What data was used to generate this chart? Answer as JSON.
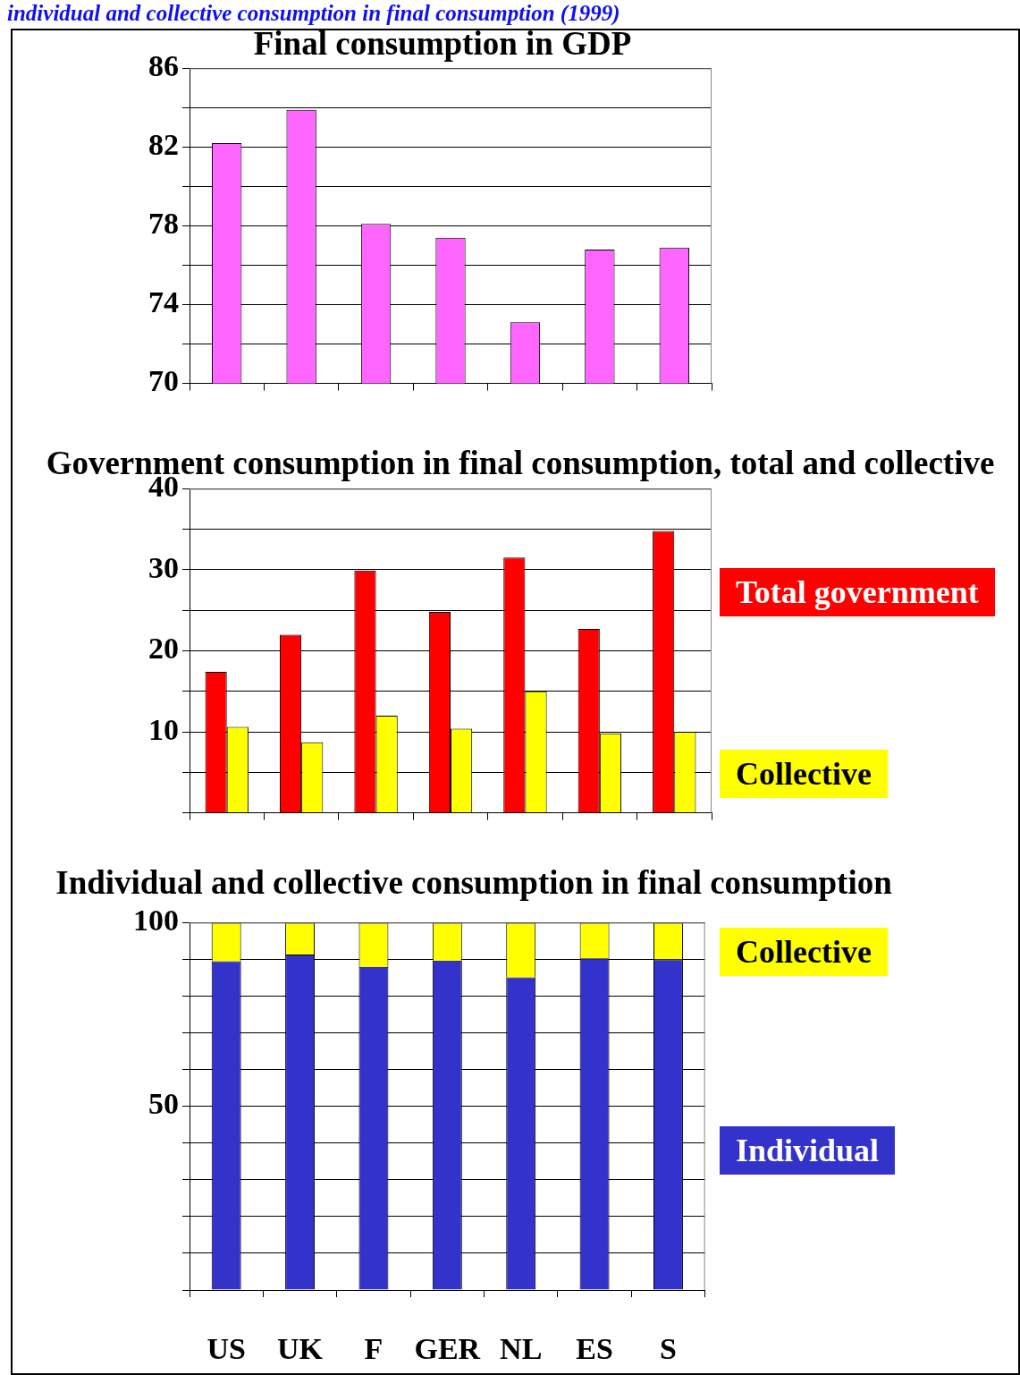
{
  "chart_data": [
    {
      "type": "bar",
      "title": "Final consumption in GDP",
      "annotations": [
        "individual and collective consumption in final consumption (1999)"
      ],
      "categories": [
        null,
        null,
        null,
        null,
        null,
        null,
        null
      ],
      "values": [
        82.2,
        83.9,
        78.1,
        77.4,
        73.1,
        76.8,
        76.9
      ],
      "color": "#ff66ff",
      "ylim": [
        70,
        86
      ],
      "yticks": [
        70,
        {
          "value": 72,
          "label": null
        },
        74,
        {
          "value": 76,
          "label": null
        },
        78,
        {
          "value": 80,
          "label": null
        },
        82,
        {
          "value": 84,
          "label": null
        },
        86
      ],
      "grid": "y",
      "tick_labels": "y"
    },
    {
      "type": "bar",
      "title": "Government consumption in final consumption, total and collective",
      "categories": [
        null,
        null,
        null,
        null,
        null,
        null,
        null
      ],
      "series": [
        {
          "name": "Total government",
          "color": "#ff0000",
          "values": [
            17.4,
            22.0,
            29.9,
            24.8,
            31.5,
            22.7,
            34.8
          ]
        },
        {
          "name": "Collective",
          "color": "#ffff00",
          "values": [
            10.6,
            8.7,
            12.0,
            10.4,
            15.0,
            9.8,
            10.0
          ]
        }
      ],
      "ylim": [
        0,
        40
      ],
      "yticks": [
        {
          "value": 0,
          "label": null
        },
        {
          "value": 5,
          "label": null
        },
        10,
        {
          "value": 15,
          "label": null
        },
        20,
        {
          "value": 25,
          "label": null
        },
        30,
        {
          "value": 35,
          "label": null
        },
        40
      ],
      "grid": "y",
      "tick_labels": "y",
      "legend": "right"
    },
    {
      "type": "bar",
      "title": "Individual and collective consumption in final consumption",
      "stacked": true,
      "categories": [
        "US",
        "UK",
        "F",
        "GER",
        "NL",
        "ES",
        "S"
      ],
      "series": [
        {
          "name": "Individual",
          "color": "#3333cc",
          "values": [
            89.5,
            91.3,
            88.0,
            89.7,
            85.1,
            90.3,
            90.0
          ]
        },
        {
          "name": "Collective",
          "color": "#ffff00",
          "values": [
            10.5,
            8.7,
            12.0,
            10.3,
            14.9,
            9.7,
            10.0
          ]
        }
      ],
      "ylim": [
        0,
        100
      ],
      "yticks": [
        {
          "value": 0,
          "label": null
        },
        {
          "value": 10,
          "label": null
        },
        {
          "value": 20,
          "label": null
        },
        {
          "value": 30,
          "label": null
        },
        {
          "value": 40,
          "label": null
        },
        50,
        {
          "value": 60,
          "label": null
        },
        {
          "value": 70,
          "label": null
        },
        {
          "value": 80,
          "label": null
        },
        {
          "value": 90,
          "label": null
        },
        100
      ],
      "grid": "y",
      "legend": "right"
    }
  ]
}
